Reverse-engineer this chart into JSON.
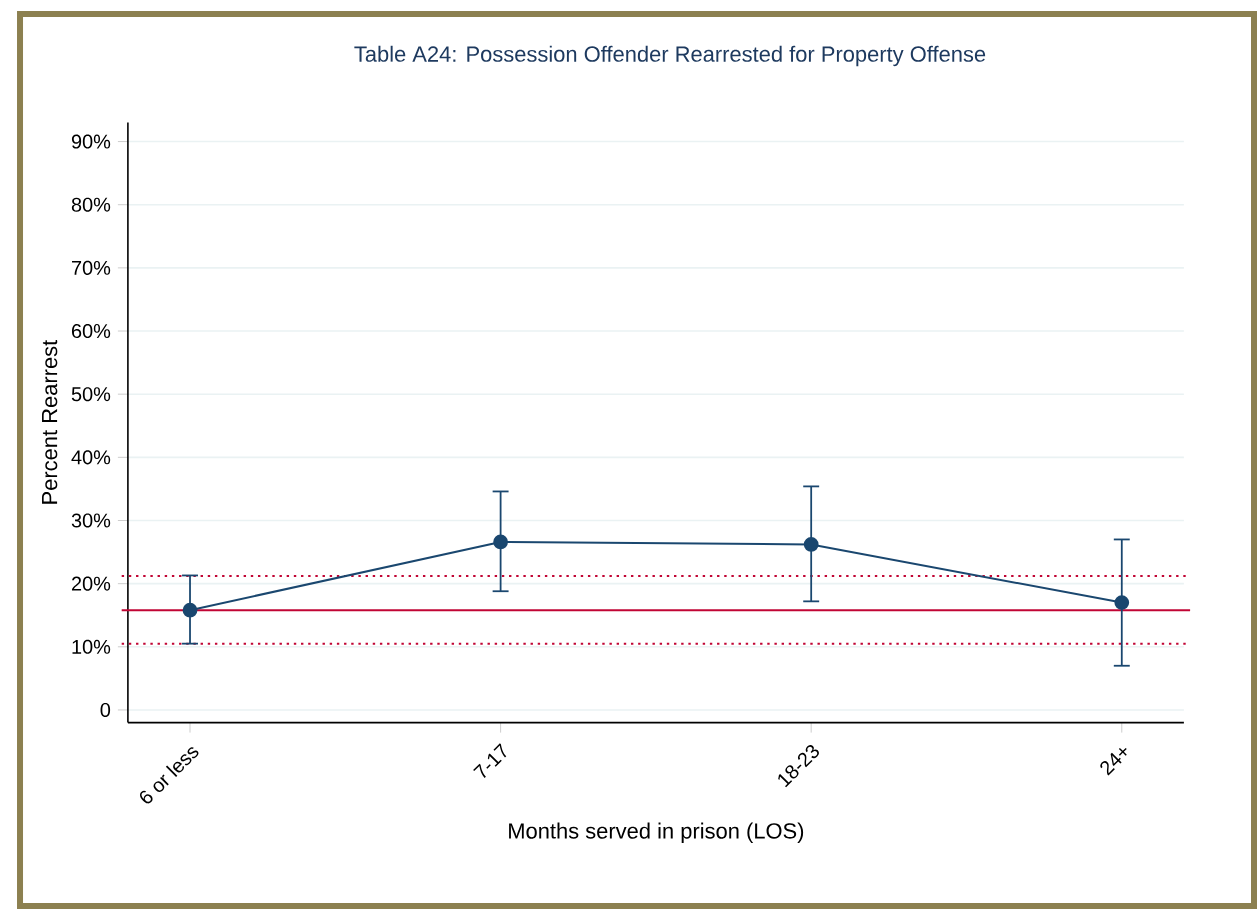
{
  "chart_data": {
    "type": "line",
    "title": "Table A24: Possession Offender Rearrested for Property Offense",
    "xlabel": "Months served in prison (LOS)",
    "ylabel": "Percent Rearrest",
    "categories": [
      "6 or less",
      "7-17",
      "18-23",
      "24+"
    ],
    "series": [
      {
        "color": "#1a476f",
        "values": [
          15.8,
          26.6,
          26.2,
          17.0
        ],
        "errors": [
          [
            10.5,
            21.3
          ],
          [
            18.8,
            34.6
          ],
          [
            17.2,
            35.4
          ],
          [
            7.0,
            27.0
          ]
        ]
      }
    ],
    "ylim": [
      -2,
      93
    ],
    "yticks": [
      0,
      {
        "value": 10,
        "label": "10%"
      },
      {
        "value": 20,
        "label": "20%"
      },
      {
        "value": 30,
        "label": "30%"
      },
      {
        "value": 40,
        "label": "40%"
      },
      {
        "value": 50,
        "label": "50%"
      },
      {
        "value": 60,
        "label": "60%"
      },
      {
        "value": 70,
        "label": "70%"
      },
      {
        "value": 80,
        "label": "80%"
      },
      {
        "value": 90,
        "label": "90%"
      }
    ],
    "ref_lines": [
      {
        "axis": "y",
        "value": 15.8,
        "color": "#c10534",
        "line_style": "solid"
      },
      {
        "axis": "y",
        "value": 10.5,
        "color": "#c10534",
        "line_style": "dotted"
      },
      {
        "axis": "y",
        "value": 21.2,
        "color": "#c10534",
        "line_style": "dotted"
      }
    ],
    "grid": "y",
    "marker": "circle",
    "line_style": "solid"
  }
}
